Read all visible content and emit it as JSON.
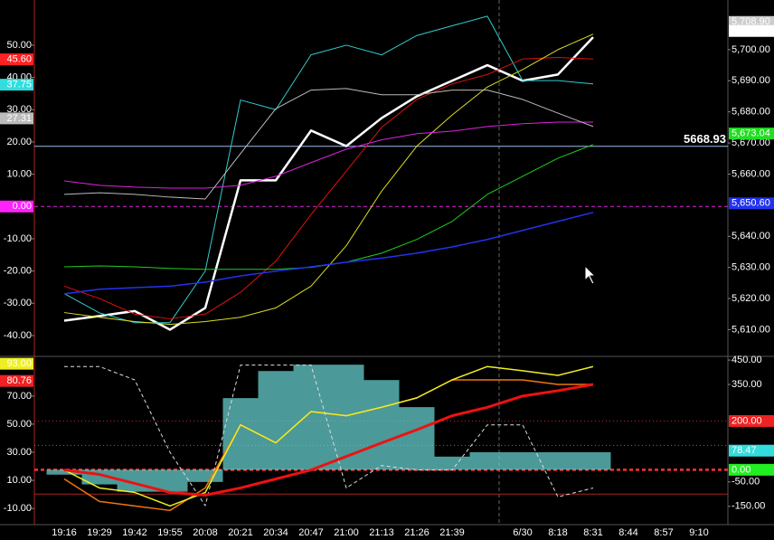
{
  "chart_data": [
    {
      "type": "line",
      "ylim": [
        -45.9,
        62.6
      ],
      "yticks": [
        {
          "value": 50,
          "label": "50.00"
        },
        {
          "value": 40,
          "label": "40.00"
        },
        {
          "value": 30,
          "label": "30.00"
        },
        {
          "value": 20,
          "label": "20.00"
        },
        {
          "value": 10,
          "label": "10.00"
        },
        {
          "value": -10,
          "label": "-10.00"
        },
        {
          "value": -20,
          "label": "-20.00"
        },
        {
          "value": -30,
          "label": "-30.00"
        },
        {
          "value": -40,
          "label": "-40.00"
        }
      ],
      "y2lim": [
        5602,
        5714.5
      ],
      "y2ticks": [
        {
          "value": 5700,
          "label": "5,700.00"
        },
        {
          "value": 5690,
          "label": "5,690.00"
        },
        {
          "value": 5680,
          "label": "5,680.00"
        },
        {
          "value": 5670,
          "label": "5,670.00"
        },
        {
          "value": 5660,
          "label": "5,660.00"
        },
        {
          "value": 5640,
          "label": "5,640.00"
        },
        {
          "value": 5630,
          "label": "5,630.00"
        },
        {
          "value": 5620,
          "label": "5,620.00"
        },
        {
          "value": 5610,
          "label": "5,610.00"
        }
      ],
      "series": [
        {
          "color": "#ffffff",
          "axis": "y2",
          "width": 2.5,
          "values": [
            5612.9,
            5614.4,
            5616,
            5610,
            5617,
            5658,
            5658,
            5674,
            5669,
            5678,
            5685,
            5690,
            5695,
            5690,
            5692,
            5704,
            null,
            null,
            null
          ]
        },
        {
          "color": "#33cccc",
          "axis": "y",
          "width": 1,
          "values": [
            -27,
            -33,
            -36,
            -36,
            -20,
            33,
            30,
            47,
            50,
            47,
            53,
            56,
            59,
            39,
            39,
            38,
            null,
            null,
            null
          ]
        },
        {
          "color": "#dd1111",
          "axis": "y2",
          "width": 1,
          "values": [
            5624,
            5620,
            5615,
            5613.5,
            5615,
            5622,
            5632,
            5647,
            5661,
            5675,
            5684,
            5689,
            5692,
            5697,
            5697.5,
            5697,
            null,
            null,
            null
          ]
        },
        {
          "color": "#dddd22",
          "axis": "y2",
          "width": 1,
          "values": [
            5615.5,
            5614,
            5612.6,
            5611.7,
            5612.6,
            5614,
            5617,
            5624,
            5637,
            5654.5,
            5669,
            5679,
            5688,
            5693.6,
            5700,
            5705,
            null,
            null,
            null
          ]
        },
        {
          "color": "#22cc22",
          "axis": "y2",
          "width": 1,
          "values": [
            5630.2,
            5630.5,
            5630.2,
            5629.7,
            5629.4,
            5629.4,
            5629.4,
            5630,
            5631.7,
            5634.6,
            5639,
            5644.8,
            5653.5,
            5659.3,
            5665.1,
            5669.5,
            null,
            null,
            null
          ]
        },
        {
          "color": "#2233ee",
          "axis": "y2",
          "width": 1.5,
          "values": [
            5621.5,
            5623,
            5623.5,
            5624,
            5625.3,
            5627.3,
            5628.8,
            5630.2,
            5631.7,
            5633,
            5634.6,
            5636.6,
            5639,
            5641.9,
            5644.8,
            5647.7,
            null,
            null,
            null
          ]
        },
        {
          "color": "#dd22dd",
          "axis": "y2",
          "width": 1,
          "values": [
            5657.8,
            5656.4,
            5655.8,
            5655.5,
            5655.5,
            5656.4,
            5659.3,
            5663.7,
            5668,
            5671,
            5673,
            5673.8,
            5675.3,
            5676.2,
            5676.7,
            5676.7,
            null,
            null,
            null
          ]
        },
        {
          "color": "#bbbbbb",
          "axis": "y2",
          "width": 1,
          "values": [
            5653.5,
            5654,
            5653.5,
            5652.6,
            5652,
            5666.6,
            5681,
            5687,
            5687.5,
            5685.5,
            5685.5,
            5687,
            5687,
            5684,
            5679.6,
            5675.3,
            null,
            null,
            null
          ]
        }
      ],
      "hlines": [
        {
          "axis": "y2",
          "value": 5668.93,
          "label": "5668.93",
          "color": "#99bbee",
          "style": "solid"
        },
        {
          "axis": "y",
          "value": 0,
          "color": "#dd22dd",
          "style": "dashed"
        }
      ],
      "badges": [
        {
          "axis": "y",
          "value": 45.6,
          "label": "45.60",
          "color": "#ff2222",
          "text_color": "#000000"
        },
        {
          "axis": "y",
          "value": 37.75,
          "label": "37.75",
          "color": "#33dddd",
          "text_color": "#000000"
        },
        {
          "axis": "y",
          "value": 27.31,
          "label": "27.31",
          "color": "#bbbbbb",
          "text_color": "#000000"
        },
        {
          "axis": "y",
          "value": 0,
          "label": "0.00",
          "color": "#ff22ff",
          "text_color": "#000000"
        },
        {
          "axis": "y2",
          "value": 5708.9,
          "label": "5,708.90",
          "color": "#cccccc",
          "text_color": "#000000"
        },
        {
          "axis": "y2",
          "value": 5706,
          "label": "5,706.00",
          "color": "#ffffff",
          "text_color": "#000000"
        },
        {
          "axis": "y2",
          "value": 5673.04,
          "label": "5,673.04",
          "color": "#22dd22",
          "text_color": "#000000"
        },
        {
          "axis": "y2",
          "value": 5650.6,
          "label": "5,650.60",
          "color": "#2233ee",
          "text_color": "#000000"
        }
      ]
    },
    {
      "type": "line",
      "categories": [
        "19:16",
        "19:29",
        "19:42",
        "19:55",
        "20:08",
        "20:21",
        "20:34",
        "20:47",
        "21:00",
        "21:13",
        "21:26",
        "21:39",
        null,
        "6/30",
        "8:18",
        "8:31",
        "8:44",
        "8:57",
        "9:10"
      ],
      "ylim": [
        -21.5,
        96.3
      ],
      "yticks": [
        {
          "value": 70,
          "label": "70.00"
        },
        {
          "value": 50,
          "label": "50.00"
        },
        {
          "value": 30,
          "label": "30.00"
        },
        {
          "value": 10,
          "label": "10.00"
        },
        {
          "value": -10,
          "label": "-10.00"
        }
      ],
      "y2lim": [
        -225,
        454
      ],
      "y2ticks": [
        {
          "value": 450,
          "label": "450.00"
        },
        {
          "value": 350,
          "label": "350.00"
        },
        {
          "value": -50,
          "label": "-50.00"
        },
        {
          "value": -150,
          "label": "-150.00"
        }
      ],
      "series": [
        {
          "color": "#66cccc",
          "axis": "y2",
          "kind": "bar",
          "values": [
            -20,
            -60,
            -90,
            -90,
            -50,
            294,
            405,
            431,
            431,
            368,
            257,
            54,
            72,
            72,
            72,
            72,
            null,
            null,
            null
          ]
        },
        {
          "color": "#dddddd",
          "axis": "y",
          "width": 1,
          "style": "dashed",
          "values": [
            91,
            91,
            81.5,
            30,
            -8,
            92,
            92,
            92,
            4.6,
            20.6,
            17.4,
            17.4,
            49.5,
            49.5,
            -1.8,
            4.6,
            null,
            null,
            null
          ]
        },
        {
          "color": "#ee7711",
          "axis": "y",
          "width": 1.5,
          "values": [
            11,
            -5,
            -8.2,
            -11.4,
            4.6,
            49.5,
            36.7,
            59,
            56,
            62,
            68.7,
            81.5,
            81.5,
            81.5,
            78.3,
            78.3,
            null,
            null,
            null
          ]
        },
        {
          "color": "#eeee22",
          "axis": "y",
          "width": 1.5,
          "values": [
            17.4,
            4.6,
            1.4,
            -8.2,
            1.4,
            49.5,
            36.7,
            59,
            56,
            62,
            68.7,
            81.5,
            91,
            88,
            84.7,
            91,
            null,
            null,
            null
          ]
        },
        {
          "color": "#ee1111",
          "axis": "y",
          "width": 3,
          "values": [
            17.4,
            14.2,
            7.8,
            1.4,
            -0.5,
            4.6,
            11,
            17.4,
            27,
            36.7,
            46,
            56,
            62,
            70,
            73.8,
            78.3,
            null,
            null,
            null
          ]
        }
      ],
      "hlines": [
        {
          "axis": "y2",
          "value": 200,
          "color": "#cc2222",
          "style": "dotted"
        },
        {
          "axis": "y2",
          "value": 100,
          "color": "#22aa22",
          "style": "dotted"
        },
        {
          "axis": "y2",
          "value": 0,
          "color": "#ff3333",
          "style": "dashed"
        },
        {
          "axis": "y2",
          "value": -100,
          "color": "#aa2222",
          "style": "solid"
        }
      ],
      "badges": [
        {
          "axis": "y",
          "value": 93,
          "label": "93.00",
          "color": "#eeee22",
          "text_color": "#000000"
        },
        {
          "axis": "y",
          "value": 80.76,
          "label": "80.76",
          "color": "#ee2222",
          "text_color": "#000000"
        },
        {
          "axis": "y2",
          "value": 200,
          "label": "200.00",
          "color": "#ee2222",
          "text_color": "#000000"
        },
        {
          "axis": "y2",
          "value": 78.47,
          "label": "78.47",
          "color": "#33dddd",
          "text_color": "#000000"
        },
        {
          "axis": "y2",
          "value": 0,
          "label": "0.00",
          "color": "#22ee22",
          "text_color": "#000000"
        }
      ]
    }
  ]
}
